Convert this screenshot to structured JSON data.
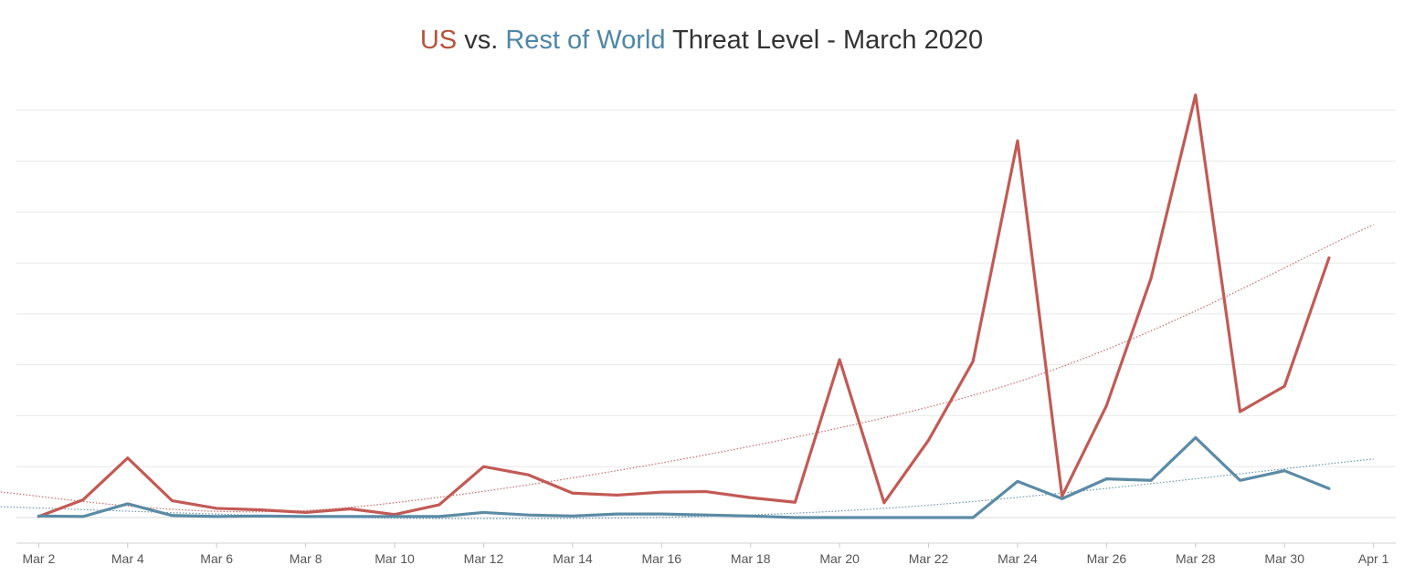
{
  "title": {
    "us": "US",
    "vs": " vs. ",
    "row": "Rest of World",
    "rest": " Threat Level - March 2020"
  },
  "colors": {
    "us": "#c25a55",
    "row": "#5b8ba5",
    "title_us": "#b5533c",
    "title_row": "#4f86a6",
    "text": "#333333",
    "grid": "#e8e8e8",
    "tick_label": "#555555"
  },
  "chart_data": {
    "type": "line",
    "title": "US vs. Rest of World Threat Level - March 2020",
    "xlabel": "",
    "ylabel": "",
    "y_axis_labels_visible": false,
    "grid": true,
    "x_tick_labels": [
      "Mar 2",
      "Mar 4",
      "Mar 6",
      "Mar 8",
      "Mar 10",
      "Mar 12",
      "Mar 14",
      "Mar 16",
      "Mar 18",
      "Mar 20",
      "Mar 22",
      "Mar 24",
      "Mar 26",
      "Mar 28",
      "Mar 30",
      "Apr 1"
    ],
    "x_range": [
      "2020-03-01T12:00",
      "2020-04-01T12:00"
    ],
    "ylim": [
      -0.5,
      8.5
    ],
    "x": [
      "2020-03-02",
      "2020-03-03",
      "2020-03-04",
      "2020-03-05",
      "2020-03-06",
      "2020-03-07",
      "2020-03-08",
      "2020-03-09",
      "2020-03-10",
      "2020-03-11",
      "2020-03-12",
      "2020-03-13",
      "2020-03-14",
      "2020-03-15",
      "2020-03-16",
      "2020-03-17",
      "2020-03-18",
      "2020-03-19",
      "2020-03-20",
      "2020-03-21",
      "2020-03-22",
      "2020-03-23",
      "2020-03-24",
      "2020-03-25",
      "2020-03-26",
      "2020-03-27",
      "2020-03-28",
      "2020-03-29",
      "2020-03-30",
      "2020-03-31"
    ],
    "series": [
      {
        "key": "us",
        "name": "US",
        "color": "#c25a55",
        "values": [
          0.02,
          0.35,
          1.17,
          0.33,
          0.18,
          0.15,
          0.1,
          0.17,
          0.06,
          0.25,
          1.0,
          0.84,
          0.48,
          0.44,
          0.5,
          0.51,
          0.39,
          0.3,
          3.1,
          0.29,
          1.52,
          3.07,
          7.4,
          0.42,
          2.2,
          4.7,
          8.3,
          2.08,
          2.58,
          5.1
        ],
        "trend": {
          "style": "dotted",
          "points": [
            [
              -0.5,
              0.55
            ],
            [
              8,
              0.2
            ],
            [
              22,
              2.4
            ],
            [
              31,
              5.75
            ]
          ]
        }
      },
      {
        "key": "row",
        "name": "Rest of World",
        "color": "#5b8ba5",
        "values": [
          0.03,
          0.02,
          0.27,
          0.04,
          0.02,
          0.03,
          0.02,
          0.02,
          0.02,
          0.02,
          0.1,
          0.05,
          0.03,
          0.07,
          0.07,
          0.05,
          0.03,
          0.0,
          0.0,
          0.0,
          0.0,
          0.0,
          0.71,
          0.37,
          0.76,
          0.73,
          1.57,
          0.73,
          0.92,
          0.57
        ],
        "trend": {
          "style": "dotted",
          "points": [
            [
              -0.5,
              0.23
            ],
            [
              10,
              -0.02
            ],
            [
              20,
              0.18
            ],
            [
              31,
              1.15
            ]
          ]
        }
      }
    ]
  }
}
